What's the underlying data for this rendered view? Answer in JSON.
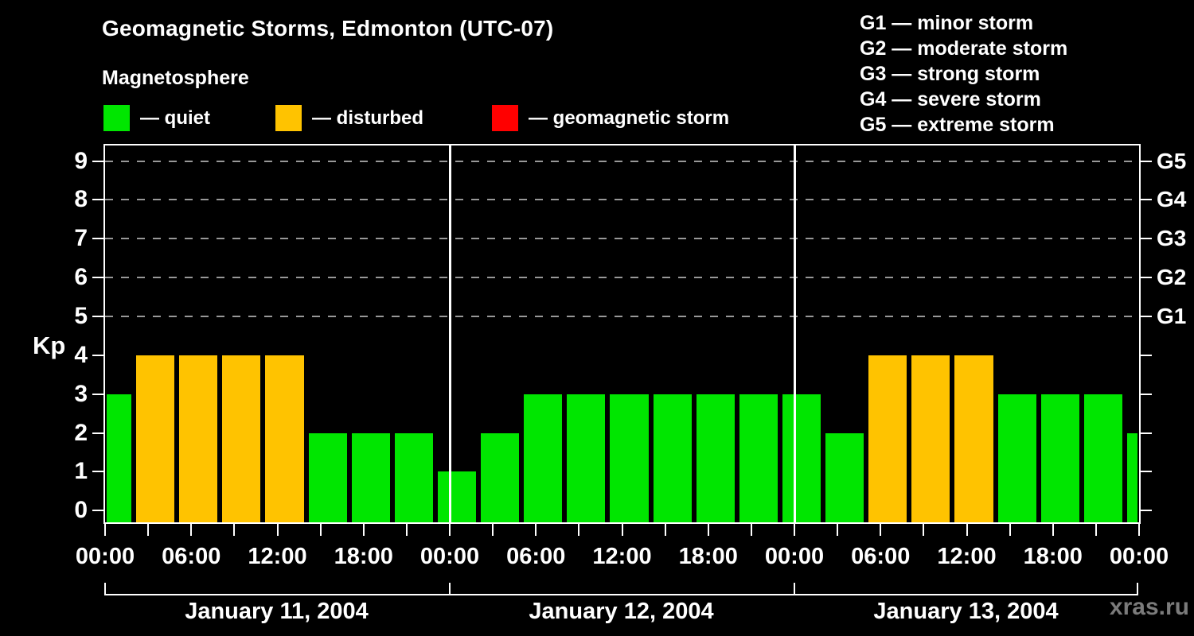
{
  "header": {
    "title": "Geomagnetic Storms, Edmonton (UTC-07)",
    "subtitle": "Magnetosphere"
  },
  "legend": {
    "items": [
      {
        "label": "— quiet",
        "state": "quiet",
        "color": "#00e600"
      },
      {
        "label": "— disturbed",
        "state": "disturbed",
        "color": "#ffc300"
      },
      {
        "label": "— geomagnetic storm",
        "state": "storm",
        "color": "#ff0000"
      }
    ]
  },
  "g_legend": {
    "lines": [
      "G1 — minor storm",
      "G2 — moderate storm",
      "G3 — strong storm",
      "G4 — severe storm",
      "G5 — extreme storm"
    ]
  },
  "watermark": "xras.ru",
  "chart_data": {
    "type": "bar",
    "title": "Geomagnetic Storms, Edmonton (UTC-07)",
    "xlabel": "",
    "ylabel": "Kp",
    "ylim": [
      0,
      9
    ],
    "hours_span": 72,
    "bar_interval_hours": 3,
    "y_tick_labels": [
      "0",
      "1",
      "2",
      "3",
      "4",
      "5",
      "6",
      "7",
      "8",
      "9"
    ],
    "right_axis_labels": [
      {
        "label": "G1",
        "kp": 5
      },
      {
        "label": "G2",
        "kp": 6
      },
      {
        "label": "G3",
        "kp": 7
      },
      {
        "label": "G4",
        "kp": 8
      },
      {
        "label": "G5",
        "kp": 9
      }
    ],
    "gridline_kp": [
      5,
      6,
      7,
      8,
      9
    ],
    "separator_hours": [
      24,
      48
    ],
    "x_tick_hours_minor_step": 3,
    "x_major_ticks": [
      {
        "hour": 0,
        "label": "00:00"
      },
      {
        "hour": 6,
        "label": "06:00"
      },
      {
        "hour": 12,
        "label": "12:00"
      },
      {
        "hour": 18,
        "label": "18:00"
      },
      {
        "hour": 24,
        "label": "00:00"
      },
      {
        "hour": 30,
        "label": "06:00"
      },
      {
        "hour": 36,
        "label": "12:00"
      },
      {
        "hour": 42,
        "label": "18:00"
      },
      {
        "hour": 48,
        "label": "00:00"
      },
      {
        "hour": 54,
        "label": "06:00"
      },
      {
        "hour": 60,
        "label": "12:00"
      },
      {
        "hour": 66,
        "label": "18:00"
      },
      {
        "hour": 72,
        "label": "00:00"
      }
    ],
    "days": [
      {
        "label": "January 11, 2004",
        "values": [
          3,
          4,
          4,
          4,
          4,
          2,
          2,
          2
        ]
      },
      {
        "label": "January 12, 2004",
        "values": [
          1,
          2,
          3,
          3,
          3,
          3,
          3,
          3
        ]
      },
      {
        "label": "January 13, 2004",
        "values": [
          3,
          2,
          4,
          4,
          4,
          3,
          3,
          3
        ]
      }
    ],
    "bars": [
      {
        "start_hour": -1,
        "kp": 3,
        "state": "quiet"
      },
      {
        "start_hour": 2,
        "kp": 4,
        "state": "disturbed"
      },
      {
        "start_hour": 5,
        "kp": 4,
        "state": "disturbed"
      },
      {
        "start_hour": 8,
        "kp": 4,
        "state": "disturbed"
      },
      {
        "start_hour": 11,
        "kp": 4,
        "state": "disturbed"
      },
      {
        "start_hour": 14,
        "kp": 2,
        "state": "quiet"
      },
      {
        "start_hour": 17,
        "kp": 2,
        "state": "quiet"
      },
      {
        "start_hour": 20,
        "kp": 2,
        "state": "quiet"
      },
      {
        "start_hour": 23,
        "kp": 1,
        "state": "quiet"
      },
      {
        "start_hour": 26,
        "kp": 2,
        "state": "quiet"
      },
      {
        "start_hour": 29,
        "kp": 3,
        "state": "quiet"
      },
      {
        "start_hour": 32,
        "kp": 3,
        "state": "quiet"
      },
      {
        "start_hour": 35,
        "kp": 3,
        "state": "quiet"
      },
      {
        "start_hour": 38,
        "kp": 3,
        "state": "quiet"
      },
      {
        "start_hour": 41,
        "kp": 3,
        "state": "quiet"
      },
      {
        "start_hour": 44,
        "kp": 3,
        "state": "quiet"
      },
      {
        "start_hour": 47,
        "kp": 3,
        "state": "quiet"
      },
      {
        "start_hour": 50,
        "kp": 2,
        "state": "quiet"
      },
      {
        "start_hour": 53,
        "kp": 4,
        "state": "disturbed"
      },
      {
        "start_hour": 56,
        "kp": 4,
        "state": "disturbed"
      },
      {
        "start_hour": 59,
        "kp": 4,
        "state": "disturbed"
      },
      {
        "start_hour": 62,
        "kp": 3,
        "state": "quiet"
      },
      {
        "start_hour": 65,
        "kp": 3,
        "state": "quiet"
      },
      {
        "start_hour": 68,
        "kp": 3,
        "state": "quiet"
      },
      {
        "start_hour": 71,
        "kp": 2,
        "state": "quiet"
      }
    ],
    "colors": {
      "quiet": "#00e600",
      "disturbed": "#ffc300",
      "storm": "#ff0000",
      "grid": "#989898",
      "frame": "#ffffff",
      "background": "#000000",
      "text": "#ffffff",
      "watermark": "#7b7b7b"
    },
    "legend_position": "top-left",
    "grid": "dashed horizontal at Kp 5-9"
  }
}
